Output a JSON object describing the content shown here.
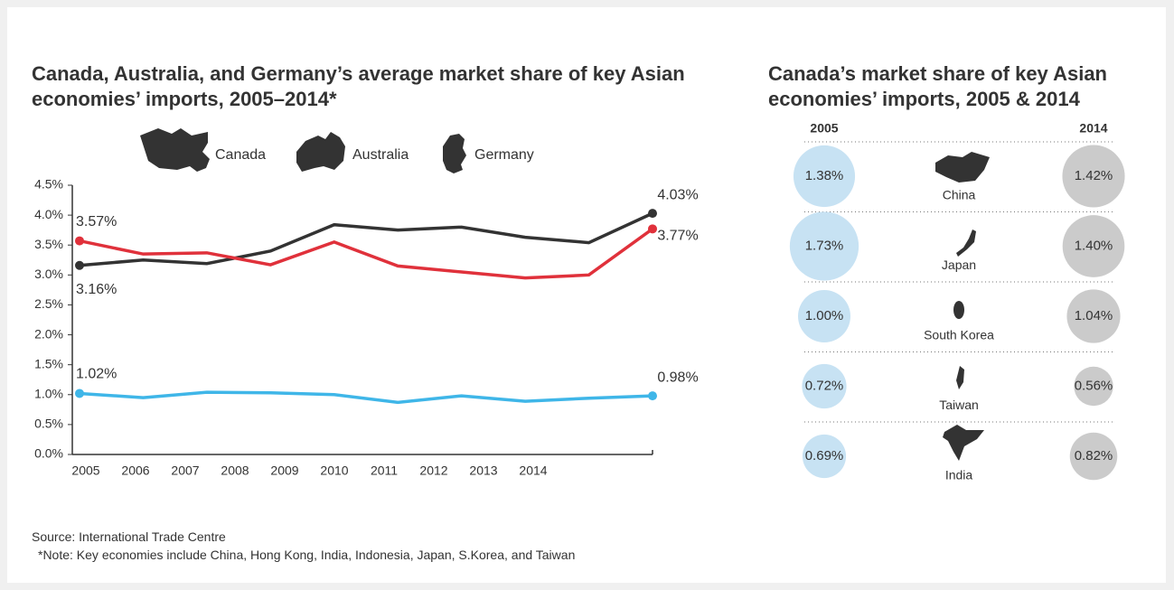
{
  "chart_data": [
    {
      "type": "line",
      "title": "Canada, Australia, and Germany’s average market share of key Asian economies’ imports, 2005–2014*",
      "categories": [
        "2005",
        "2006",
        "2007",
        "2008",
        "2009",
        "2010",
        "2011",
        "2012",
        "2013",
        "2014"
      ],
      "series": [
        {
          "name": "Canada",
          "color": "#3fb6e8",
          "values": [
            1.02,
            0.95,
            1.04,
            1.03,
            1.0,
            0.87,
            0.98,
            0.89,
            0.94,
            0.98
          ],
          "value_labels": [
            "1.02%",
            null,
            null,
            null,
            null,
            null,
            null,
            null,
            null,
            "0.98%"
          ]
        },
        {
          "name": "Australia",
          "color": "#333333",
          "values": [
            3.16,
            3.25,
            3.19,
            3.4,
            3.84,
            3.75,
            3.8,
            3.63,
            3.54,
            4.03
          ],
          "value_labels": [
            "3.16%",
            null,
            null,
            null,
            null,
            null,
            null,
            null,
            null,
            "4.03%"
          ]
        },
        {
          "name": "Germany",
          "color": "#e0313b",
          "values": [
            3.57,
            3.35,
            3.37,
            3.17,
            3.55,
            3.15,
            3.05,
            2.95,
            3.0,
            3.77
          ],
          "value_labels": [
            "3.57%",
            null,
            null,
            null,
            null,
            null,
            null,
            null,
            null,
            "3.77%"
          ]
        }
      ],
      "ylim": [
        0,
        4.5
      ],
      "yticks": [
        {
          "value": 0,
          "label": "0.0%"
        },
        {
          "value": 0.5,
          "label": "0.5%"
        },
        {
          "value": 1,
          "label": "1.0%"
        },
        {
          "value": 1.5,
          "label": "1.5%"
        },
        {
          "value": 2,
          "label": "2.0%"
        },
        {
          "value": 2.5,
          "label": "2.5%"
        },
        {
          "value": 3,
          "label": "3.0%"
        },
        {
          "value": 3.5,
          "label": "3.5%"
        },
        {
          "value": 4,
          "label": "4.0%"
        },
        {
          "value": 4.5,
          "label": "4.5%"
        }
      ],
      "grid": false
    },
    {
      "type": "bubble",
      "title": "Canada’s market share of key Asian economies’ imports, 2005 & 2014",
      "categories": [
        "China",
        "Japan",
        "South Korea",
        "Taiwan",
        "India"
      ],
      "series": [
        {
          "name": "2005",
          "color": "#c7e2f3",
          "values": [
            1.38,
            1.73,
            1.0,
            0.72,
            0.69
          ],
          "value_labels": [
            "1.38%",
            "1.73%",
            "1.00%",
            "0.72%",
            "0.69%"
          ]
        },
        {
          "name": "2014",
          "color": "#cbcbcb",
          "values": [
            1.42,
            1.4,
            1.04,
            0.56,
            0.82
          ],
          "value_labels": [
            "1.42%",
            "1.40%",
            "1.04%",
            "0.56%",
            "0.82%"
          ]
        }
      ]
    }
  ],
  "source": "Source: International Trade Centre",
  "note": "*Note: Key economies include China, Hong Kong, India, Indonesia, Japan, S.Korea, and Taiwan"
}
